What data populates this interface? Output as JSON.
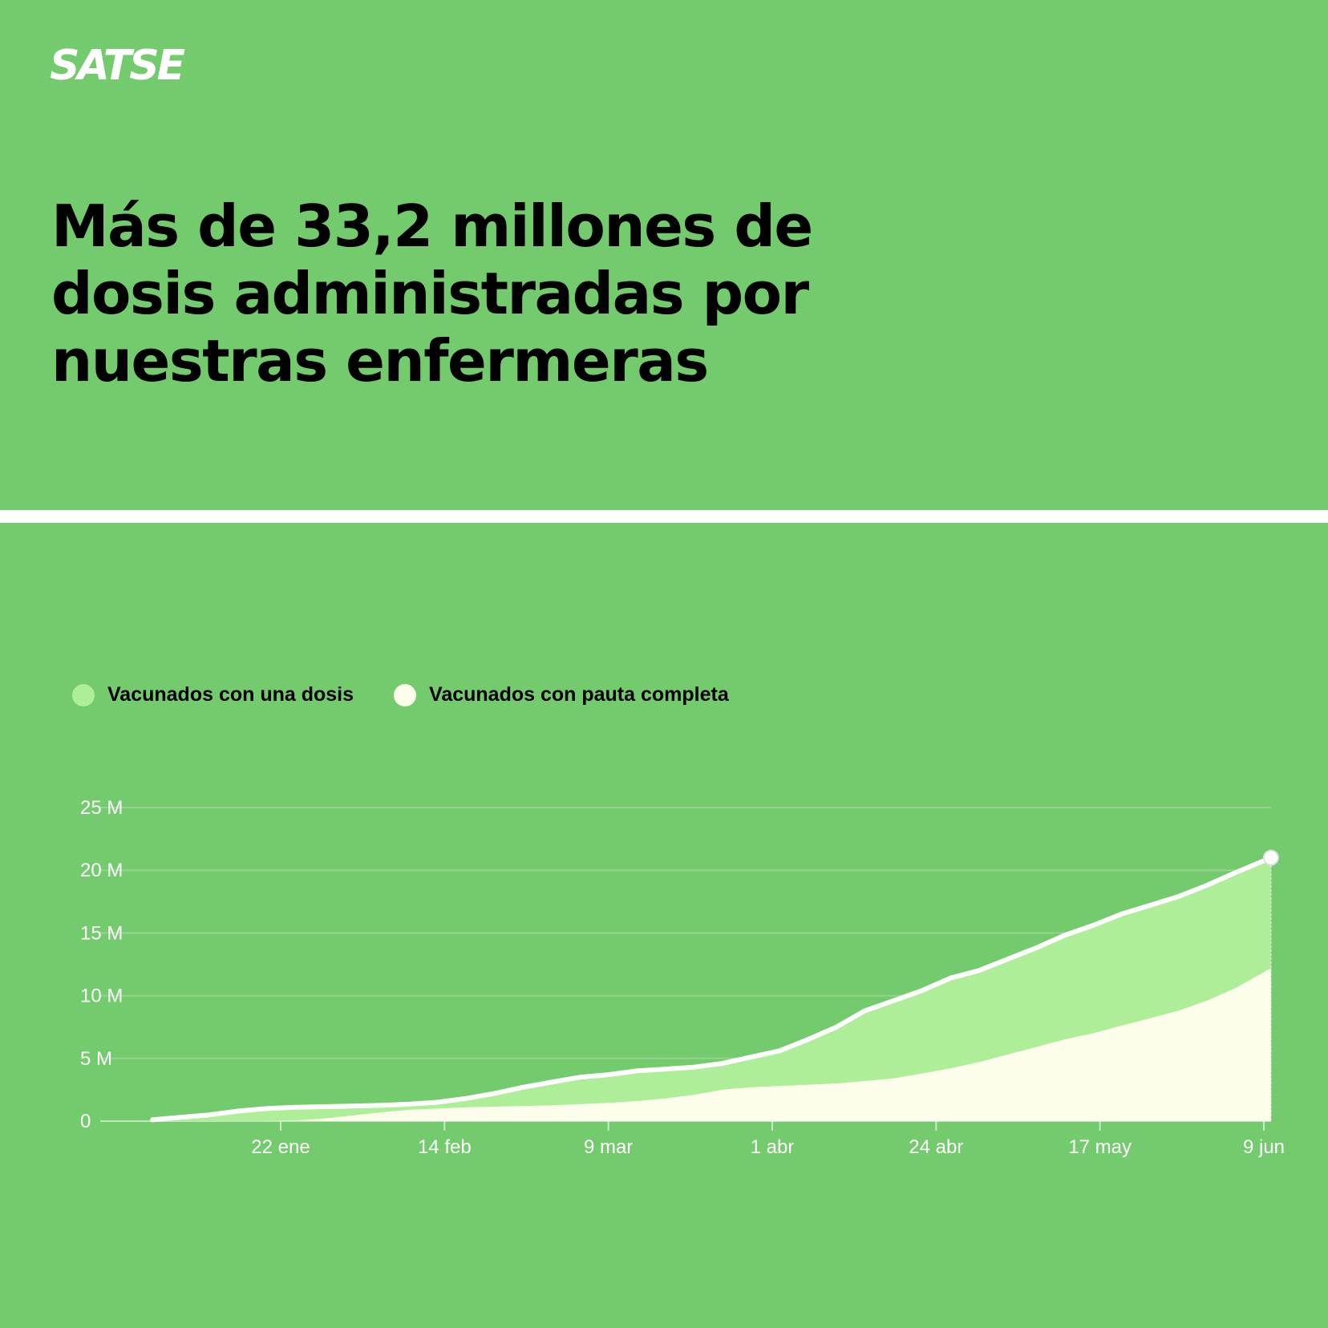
{
  "brand": {
    "logo_text": "SATSE"
  },
  "headline": "Más de 33,2 millones de dosis administradas por nuestras enfermeras",
  "colors": {
    "background": "#74cb6d",
    "one_dose": "#aeee98",
    "full_schedule": "#fdfdec",
    "line": "#ffffff"
  },
  "chart_data": {
    "type": "area",
    "title": "",
    "xlabel": "",
    "ylabel": "",
    "ylim": [
      0,
      25000000
    ],
    "grid": true,
    "legend_position": "top-left",
    "yticks": [
      {
        "value": 0,
        "label": "0"
      },
      {
        "value": 5000000,
        "label": "5 M"
      },
      {
        "value": 10000000,
        "label": "10 M"
      },
      {
        "value": 15000000,
        "label": "15 M"
      },
      {
        "value": 20000000,
        "label": "20 M"
      },
      {
        "value": 25000000,
        "label": "25 M"
      }
    ],
    "xticks": [
      {
        "date": "2021-01-22",
        "label": "22 ene"
      },
      {
        "date": "2021-02-14",
        "label": "14 feb"
      },
      {
        "date": "2021-03-09",
        "label": "9 mar"
      },
      {
        "date": "2021-04-01",
        "label": "1 abr"
      },
      {
        "date": "2021-04-24",
        "label": "24 abr"
      },
      {
        "date": "2021-05-17",
        "label": "17 may"
      },
      {
        "date": "2021-06-09",
        "label": "9 jun"
      }
    ],
    "x": [
      "2021-01-04",
      "2021-01-08",
      "2021-01-12",
      "2021-01-16",
      "2021-01-20",
      "2021-01-24",
      "2021-01-28",
      "2021-02-01",
      "2021-02-05",
      "2021-02-09",
      "2021-02-13",
      "2021-02-17",
      "2021-02-21",
      "2021-02-25",
      "2021-03-01",
      "2021-03-05",
      "2021-03-09",
      "2021-03-13",
      "2021-03-17",
      "2021-03-21",
      "2021-03-25",
      "2021-03-29",
      "2021-04-02",
      "2021-04-06",
      "2021-04-10",
      "2021-04-14",
      "2021-04-18",
      "2021-04-22",
      "2021-04-26",
      "2021-04-30",
      "2021-05-04",
      "2021-05-08",
      "2021-05-12",
      "2021-05-16",
      "2021-05-20",
      "2021-05-24",
      "2021-05-28",
      "2021-06-01",
      "2021-06-05",
      "2021-06-10"
    ],
    "series": [
      {
        "name": "Vacunados con una dosis",
        "values": [
          100000,
          300000,
          500000,
          800000,
          1000000,
          1100000,
          1150000,
          1200000,
          1250000,
          1350000,
          1500000,
          1800000,
          2200000,
          2700000,
          3100000,
          3500000,
          3700000,
          4000000,
          4150000,
          4300000,
          4600000,
          5100000,
          5600000,
          6500000,
          7500000,
          8800000,
          9600000,
          10400000,
          11400000,
          12000000,
          12900000,
          13800000,
          14800000,
          15600000,
          16500000,
          17200000,
          17900000,
          18800000,
          19800000,
          21000000
        ]
      },
      {
        "name": "Vacunados con pauta completa",
        "values": [
          0,
          0,
          0,
          0,
          0,
          50000,
          200000,
          450000,
          700000,
          900000,
          1000000,
          1100000,
          1150000,
          1200000,
          1250000,
          1350000,
          1450000,
          1600000,
          1800000,
          2100000,
          2500000,
          2700000,
          2800000,
          2900000,
          3000000,
          3200000,
          3400000,
          3800000,
          4200000,
          4700000,
          5300000,
          5900000,
          6500000,
          7000000,
          7600000,
          8200000,
          8800000,
          9600000,
          10600000,
          12200000
        ]
      }
    ]
  }
}
